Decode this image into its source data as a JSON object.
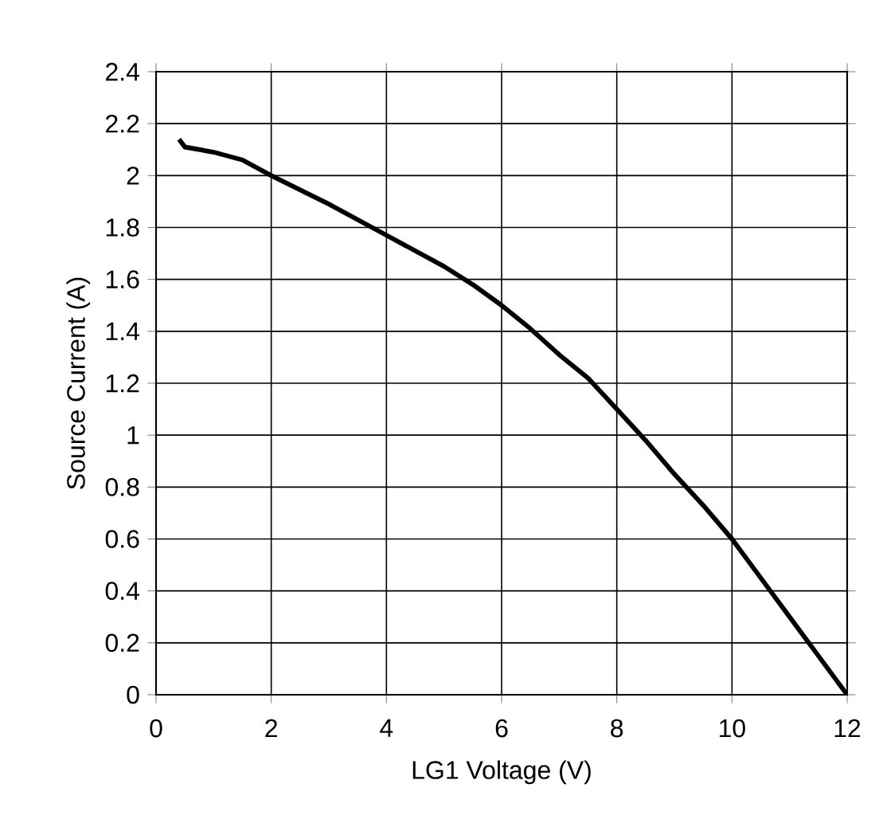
{
  "chart_data": {
    "type": "line",
    "xlabel": "LG1 Voltage (V)",
    "ylabel": "Source Current (A)",
    "x": [
      0.4,
      0.5,
      1,
      1.5,
      2,
      3,
      4,
      5,
      5.5,
      6,
      6.5,
      7,
      7.5,
      8,
      8.5,
      9,
      9.5,
      10,
      10.5,
      11,
      11.5,
      12
    ],
    "series": [
      {
        "color": "#000000",
        "values": [
          2.14,
          2.11,
          2.09,
          2.06,
          2.0,
          1.89,
          1.77,
          1.65,
          1.58,
          1.5,
          1.41,
          1.31,
          1.22,
          1.1,
          0.98,
          0.85,
          0.73,
          0.6,
          0.45,
          0.3,
          0.15,
          0.0
        ]
      }
    ],
    "xlim": [
      0,
      12
    ],
    "ylim": [
      0,
      2.4
    ],
    "xticks": [
      0,
      2,
      4,
      6,
      8,
      10,
      12
    ],
    "yticks": [
      0,
      0.2,
      0.4,
      0.6,
      0.8,
      1,
      1.2,
      1.4,
      1.6,
      1.8,
      2,
      2.2,
      2.4
    ],
    "grid": true,
    "marker": "none",
    "line_style": "solid"
  }
}
